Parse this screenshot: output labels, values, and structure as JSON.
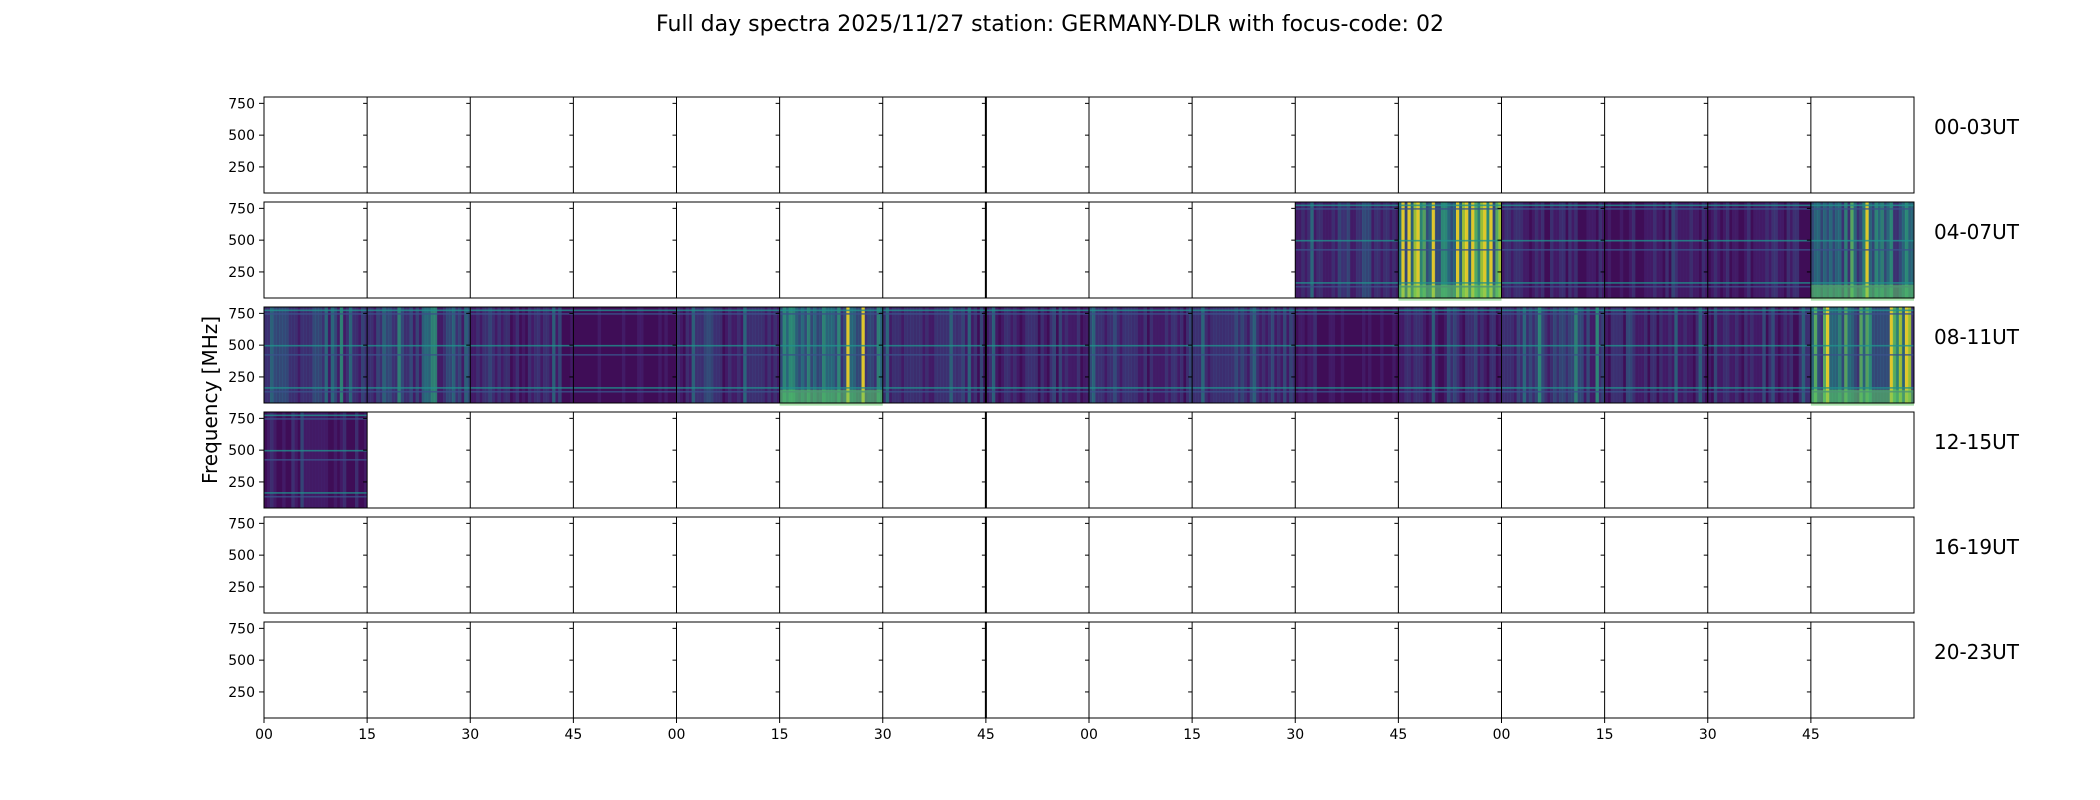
{
  "chart_data": {
    "type": "heatmap",
    "title": "Full day spectra 2025/11/27 station: GERMANY-DLR with focus-code: 02",
    "ylabel": "Frequency [MHz]",
    "xlabel": "",
    "ylim": [
      45,
      800
    ],
    "y_ticks": [
      "750",
      "500",
      "250"
    ],
    "x_tick_labels": [
      "00",
      "15",
      "30",
      "45",
      "00",
      "15",
      "30",
      "45",
      "00",
      "15",
      "30",
      "45",
      "00",
      "15",
      "30",
      "45"
    ],
    "colormap": "viridis",
    "colors": {
      "low": "#440154",
      "mid": "#3b528b",
      "teal": "#21918c",
      "green": "#5ec962",
      "high": "#fde725"
    },
    "rows": [
      {
        "label": "00-03UT",
        "filled_segments": []
      },
      {
        "label": "04-07UT",
        "filled_segments": [
          10,
          11,
          12,
          13,
          14,
          15
        ]
      },
      {
        "label": "08-11UT",
        "filled_segments": [
          0,
          1,
          2,
          3,
          4,
          5,
          6,
          7,
          8,
          9,
          10,
          11,
          12,
          13,
          14,
          15
        ]
      },
      {
        "label": "12-15UT",
        "filled_segments": [
          0
        ]
      },
      {
        "label": "16-19UT",
        "filled_segments": []
      },
      {
        "label": "20-23UT",
        "filled_segments": []
      }
    ],
    "segment_intensity": {
      "04-07UT": [
        0,
        0,
        0,
        0,
        0,
        0,
        0,
        0,
        0,
        0,
        0.25,
        0.75,
        0.2,
        0.15,
        0.15,
        0.5
      ],
      "08-11UT": [
        0.3,
        0.35,
        0.2,
        0.1,
        0.25,
        0.5,
        0.25,
        0.2,
        0.25,
        0.3,
        0.1,
        0.2,
        0.3,
        0.2,
        0.2,
        0.6
      ],
      "12-15UT": [
        0.15,
        0,
        0,
        0,
        0,
        0,
        0,
        0,
        0,
        0,
        0,
        0,
        0,
        0,
        0,
        0
      ]
    }
  }
}
